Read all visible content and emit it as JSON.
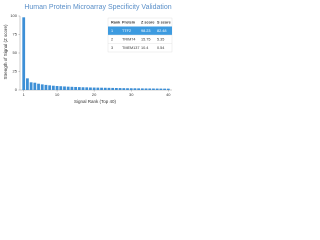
{
  "chart_data": {
    "type": "bar",
    "title": "Human Protein Microarray Specificity Validation",
    "x_label": "Signal Rank (Top 40)",
    "y_label": "Strength of Signal (Z score)",
    "x": [
      1,
      2,
      3,
      4,
      5,
      6,
      7,
      8,
      9,
      10,
      11,
      12,
      13,
      14,
      15,
      16,
      17,
      18,
      19,
      20,
      21,
      22,
      23,
      24,
      25,
      26,
      27,
      28,
      29,
      30,
      31,
      32,
      33,
      34,
      35,
      36,
      37,
      38,
      39,
      40
    ],
    "values": [
      98.23,
      15.75,
      10.4,
      9.86,
      8.5,
      7.6,
      6.9,
      6.3,
      5.8,
      5.4,
      5.1,
      4.8,
      4.5,
      4.3,
      4.1,
      3.9,
      3.7,
      3.6,
      3.4,
      3.3,
      3.2,
      3.1,
      3.0,
      2.9,
      2.8,
      2.7,
      2.6,
      2.5,
      2.4,
      2.35,
      2.3,
      2.2,
      2.15,
      2.1,
      2.05,
      2.0,
      1.95,
      1.9,
      1.85,
      1.8
    ],
    "color": "#3d8fd6",
    "xlim": [
      0,
      41
    ],
    "xticks": [
      1,
      10,
      20,
      30,
      40
    ],
    "ylim": [
      0,
      100
    ],
    "yticks": [
      0,
      25,
      50,
      75,
      100
    ],
    "table": {
      "columns": [
        "Rank",
        "Protein",
        "Z score",
        "S score"
      ],
      "rows": [
        [
          "1",
          "TTF2",
          "98.23",
          "82.48"
        ],
        [
          "2",
          "TRIM74",
          "15.75",
          "5.35"
        ],
        [
          "3",
          "TMEM137",
          "10.4",
          "0.54"
        ]
      ],
      "highlight_color": "#3d9be0"
    }
  }
}
